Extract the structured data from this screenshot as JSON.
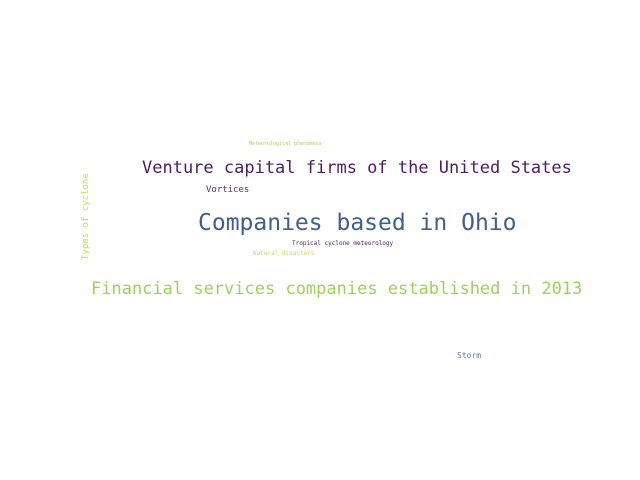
{
  "words": {
    "companies_ohio": "Companies based in Ohio",
    "venture_capital": "Venture capital firms of the United States",
    "financial_services": "Financial services companies established in 2013",
    "vortices": "Vortices",
    "storm": "Storm",
    "meteorological_phenomena": "Meteorological phenomena",
    "tropical_cyclone_meteorology": "Tropical cyclone meteorology",
    "natural_disasters": "Natural disasters",
    "types_of_cyclone": "Types of cyclone"
  },
  "colors": {
    "background": "#ffffff",
    "dark_purple": "#4b1e5e",
    "steel_blue": "#3f5f8c",
    "light_green": "#9ad35a",
    "yellow_green": "#c5dc4f"
  }
}
